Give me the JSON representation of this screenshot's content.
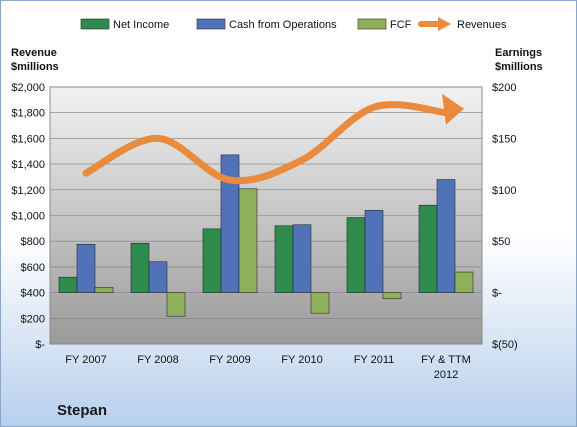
{
  "company": "Stepan",
  "legend": [
    {
      "label": "Net Income",
      "color": "#2e8b4e",
      "kind": "bar"
    },
    {
      "label": "Cash from Operations",
      "color": "#4f72b8",
      "kind": "bar"
    },
    {
      "label": "FCF",
      "color": "#8fb05a",
      "kind": "bar"
    },
    {
      "label": "Revenues",
      "color": "#e98a3c",
      "kind": "arrow"
    }
  ],
  "axes": {
    "left_title": [
      "Revenue",
      "$millions"
    ],
    "right_title": [
      "Earnings",
      "$millions"
    ],
    "left_ticks": [
      "$-",
      "$200",
      "$400",
      "$600",
      "$800",
      "$1,000",
      "$1,200",
      "$1,400",
      "$1,600",
      "$1,800",
      "$2,000"
    ],
    "right_ticks": [
      "$(50)",
      "$-",
      "$50",
      "$100",
      "$150",
      "$200"
    ]
  },
  "chart_data": {
    "type": "bar",
    "categories": [
      "FY 2007",
      "FY 2008",
      "FY 2009",
      "FY 2010",
      "FY 2011",
      "FY & TTM 2012"
    ],
    "category_lines": [
      [
        "FY 2007"
      ],
      [
        "FY 2008"
      ],
      [
        "FY 2009"
      ],
      [
        "FY 2010"
      ],
      [
        "FY 2011"
      ],
      [
        "FY & TTM",
        "2012"
      ]
    ],
    "series": [
      {
        "name": "Net Income",
        "axis": "right",
        "values": [
          15,
          48,
          62,
          65,
          73,
          85
        ]
      },
      {
        "name": "Cash from Operations",
        "axis": "right",
        "values": [
          47,
          30,
          134,
          66,
          80,
          110
        ]
      },
      {
        "name": "FCF",
        "axis": "right",
        "values": [
          5,
          -23,
          101,
          -20,
          -6,
          20
        ]
      },
      {
        "name": "Revenues",
        "axis": "left",
        "type": "line",
        "values": [
          1330,
          1600,
          1276,
          1431,
          1843,
          1800
        ]
      }
    ],
    "ylim_left": [
      0,
      2000
    ],
    "ylim_right": [
      -50,
      200
    ],
    "grid": true
  }
}
